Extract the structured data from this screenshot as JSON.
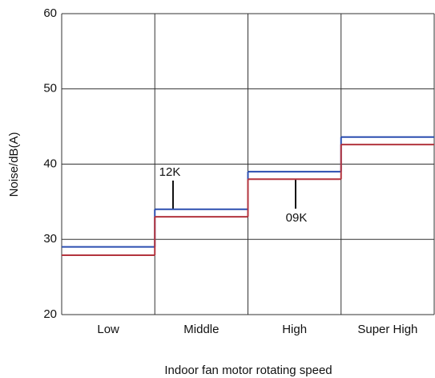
{
  "chart_data": {
    "type": "step",
    "y_label": "Noise/dB(A)",
    "x_label": "Indoor fan motor rotating speed",
    "categories": [
      "Low",
      "Middle",
      "High",
      "Super High"
    ],
    "series": [
      {
        "name": "12K",
        "color": "#2c4fb0",
        "values": [
          29,
          34,
          39,
          43.6
        ]
      },
      {
        "name": "09K",
        "color": "#b3343e",
        "values": [
          27.9,
          33,
          38,
          42.6
        ]
      }
    ],
    "ylim": [
      20,
      60
    ],
    "yticks": [
      20,
      30,
      40,
      50,
      60
    ],
    "grid": true
  }
}
